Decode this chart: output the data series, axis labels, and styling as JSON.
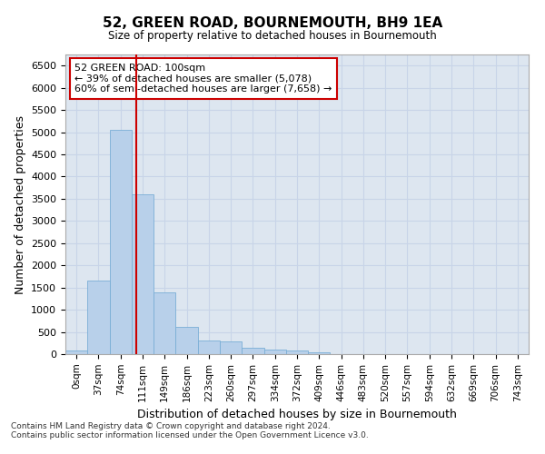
{
  "title": "52, GREEN ROAD, BOURNEMOUTH, BH9 1EA",
  "subtitle": "Size of property relative to detached houses in Bournemouth",
  "xlabel": "Distribution of detached houses by size in Bournemouth",
  "ylabel": "Number of detached properties",
  "footnote1": "Contains HM Land Registry data © Crown copyright and database right 2024.",
  "footnote2": "Contains public sector information licensed under the Open Government Licence v3.0.",
  "bar_labels": [
    "0sqm",
    "37sqm",
    "74sqm",
    "111sqm",
    "149sqm",
    "186sqm",
    "223sqm",
    "260sqm",
    "297sqm",
    "334sqm",
    "372sqm",
    "409sqm",
    "446sqm",
    "483sqm",
    "520sqm",
    "557sqm",
    "594sqm",
    "632sqm",
    "669sqm",
    "706sqm",
    "743sqm"
  ],
  "bar_values": [
    75,
    1650,
    5060,
    3600,
    1390,
    610,
    300,
    290,
    150,
    110,
    75,
    45,
    10,
    0,
    0,
    0,
    0,
    0,
    0,
    0,
    0
  ],
  "bar_color": "#b8d0ea",
  "bar_edgecolor": "#7aaed6",
  "ylim": [
    0,
    6750
  ],
  "yticks": [
    0,
    500,
    1000,
    1500,
    2000,
    2500,
    3000,
    3500,
    4000,
    4500,
    5000,
    5500,
    6000,
    6500
  ],
  "property_line_x": 2.73,
  "annotation_text": "52 GREEN ROAD: 100sqm\n← 39% of detached houses are smaller (5,078)\n60% of semi-detached houses are larger (7,658) →",
  "annotation_box_color": "#cc0000",
  "vline_color": "#cc0000",
  "grid_color": "#c8d4e8",
  "background_color": "#dde6f0"
}
